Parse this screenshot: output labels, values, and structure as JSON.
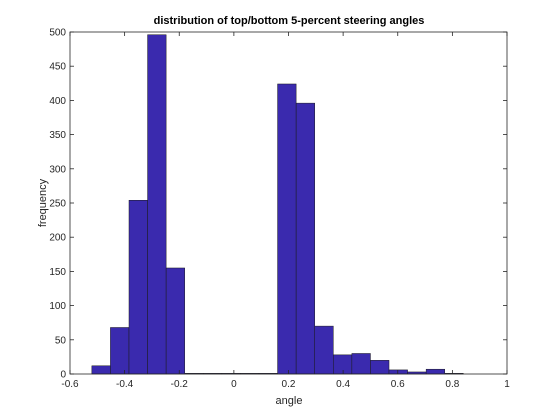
{
  "chart_data": {
    "type": "bar",
    "title": "distribution of top/bottom 5-percent steering angles",
    "xlabel": "angle",
    "ylabel": "frequency",
    "xlim": [
      -0.6,
      1.0
    ],
    "ylim": [
      0,
      500
    ],
    "x_ticks": [
      -0.6,
      -0.4,
      -0.2,
      0,
      0.2,
      0.4,
      0.6,
      0.8,
      1
    ],
    "x_tick_labels": [
      "-0.6",
      "-0.4",
      "-0.2",
      "0",
      "0.2",
      "0.4",
      "0.6",
      "0.8",
      "1"
    ],
    "y_ticks": [
      0,
      50,
      100,
      150,
      200,
      250,
      300,
      350,
      400,
      450,
      500
    ],
    "y_tick_labels": [
      "0",
      "50",
      "100",
      "150",
      "200",
      "250",
      "300",
      "350",
      "400",
      "450",
      "500"
    ],
    "bin_width": 0.068,
    "bin_centers": [
      -0.486,
      -0.418,
      -0.35,
      -0.282,
      -0.214,
      -0.146,
      -0.078,
      -0.01,
      0.058,
      0.126,
      0.194,
      0.262,
      0.33,
      0.398,
      0.466,
      0.534,
      0.602,
      0.67,
      0.738,
      0.806
    ],
    "values": [
      12,
      68,
      254,
      496,
      155,
      1,
      1,
      1,
      1,
      1,
      424,
      396,
      70,
      28,
      30,
      20,
      6,
      3,
      7,
      1
    ],
    "bar_color": "#3A2AAE",
    "bar_edge_color": "#1a1a1a",
    "grid": false,
    "legend": "none",
    "box": true
  }
}
